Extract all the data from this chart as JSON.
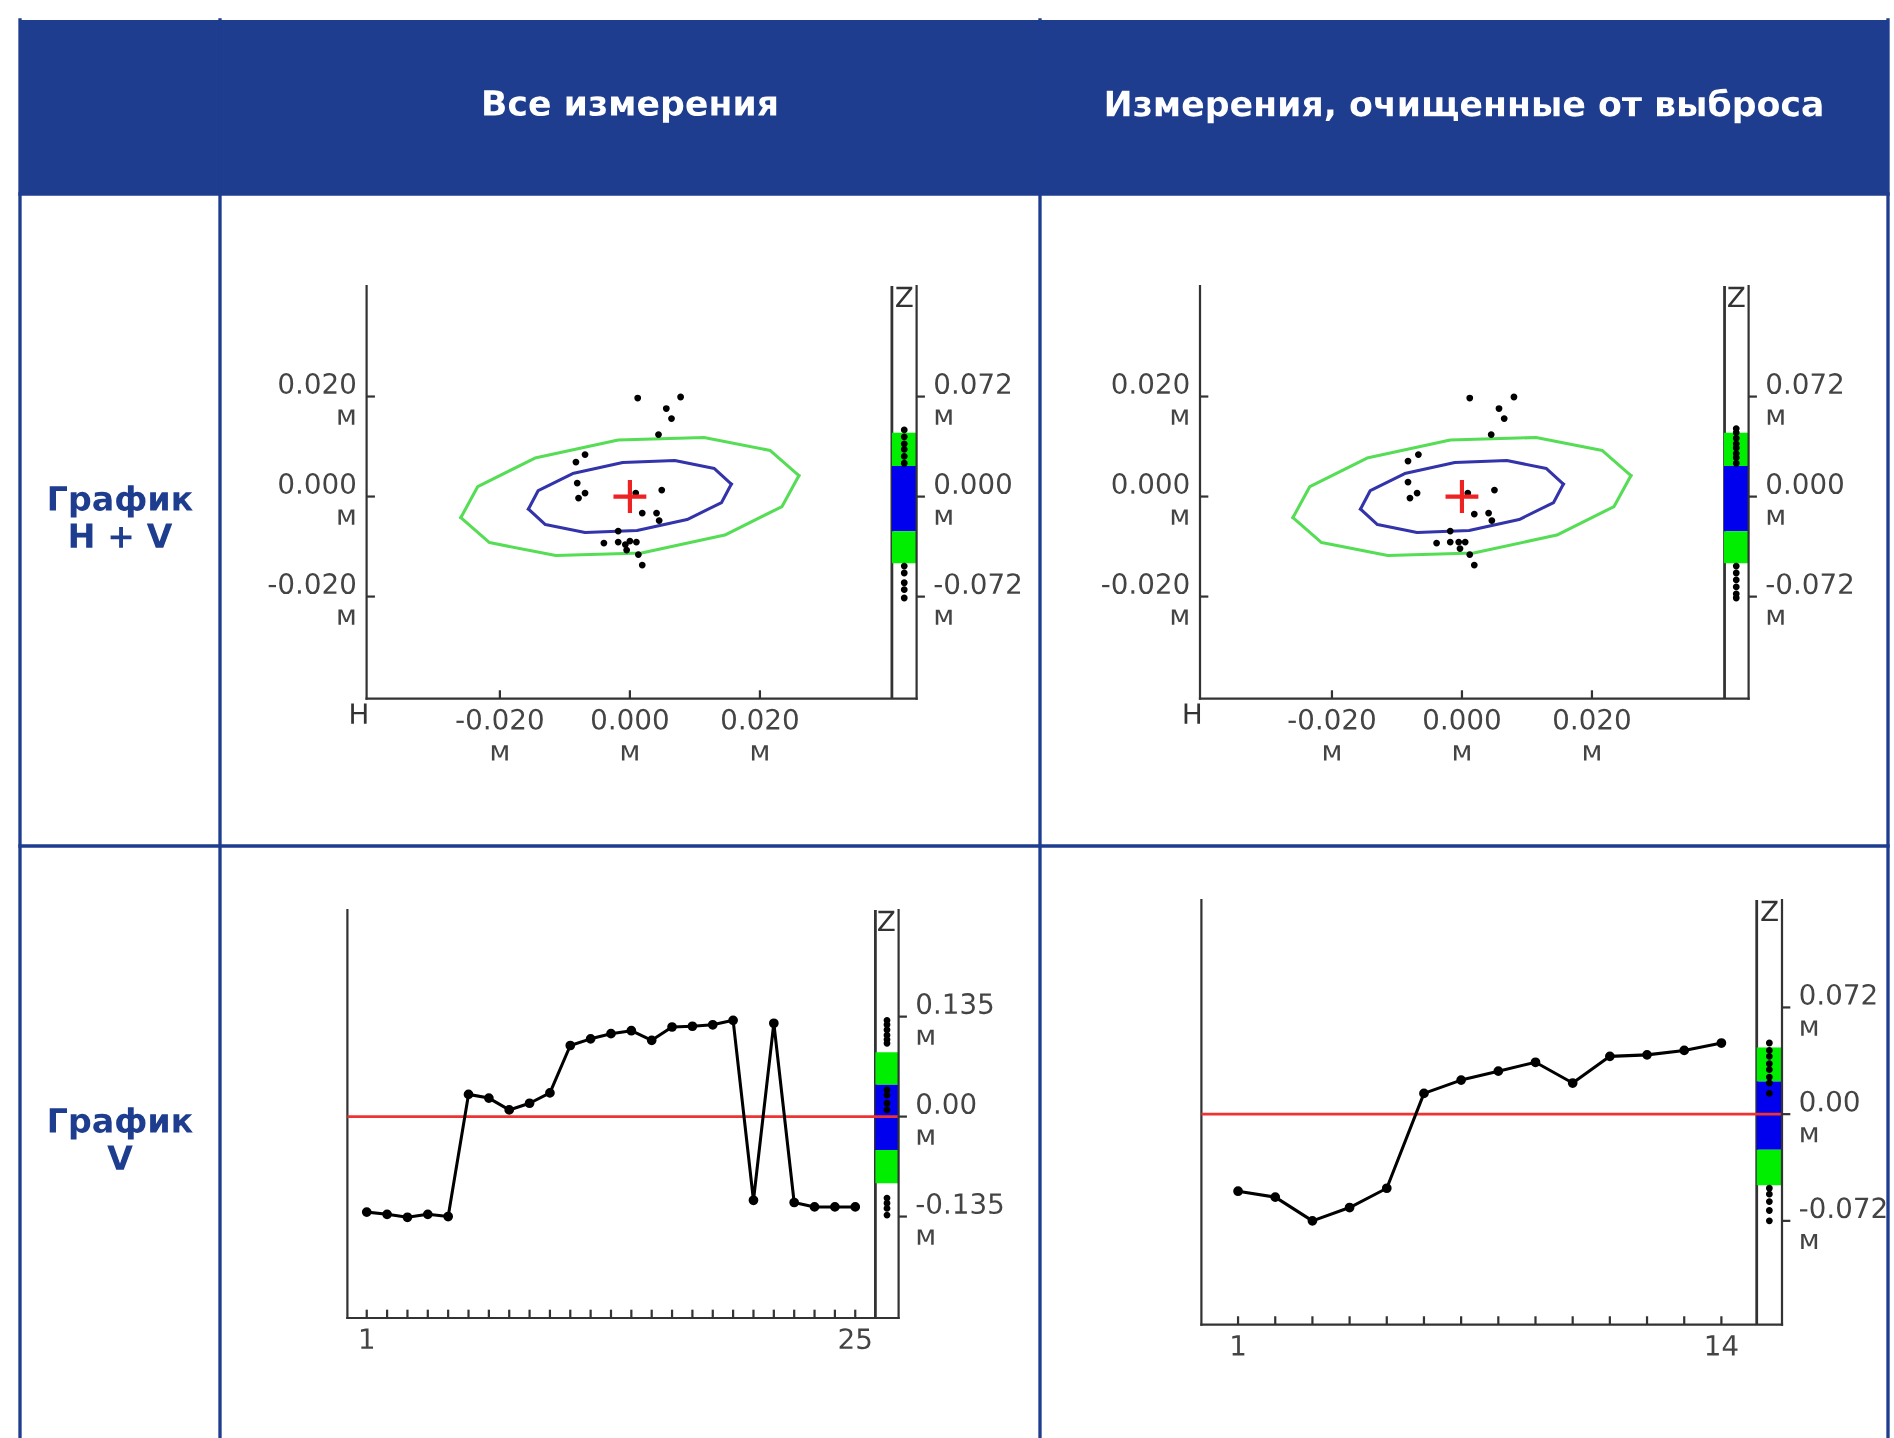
{
  "chart_data": [
    {
      "type": "scatter",
      "title": "Все измерения",
      "xlabel": "H",
      "y2label": "Z",
      "annotations": [
        "График\nH + V"
      ],
      "xlim": [
        -0.0405,
        0.0441
      ],
      "ylim": [
        -0.0404,
        0.0421
      ],
      "y2lim": [
        -0.1454,
        0.1516
      ],
      "xticks": [
        {
          "value": -0.02,
          "label": "-0.020\nм"
        },
        {
          "value": 0,
          "label": "0.000\nм"
        },
        {
          "value": 0.02,
          "label": "0.020\nм"
        }
      ],
      "yticks": [
        {
          "value": -0.02,
          "label": "-0.020\nм"
        },
        {
          "value": 0,
          "label": "0.000\nм"
        },
        {
          "value": 0.02,
          "label": "0.020\nм"
        }
      ],
      "y2ticks": [
        {
          "value": -0.072,
          "label": "-0.072\nм"
        },
        {
          "value": 0,
          "label": "0.000\nм"
        },
        {
          "value": 0.072,
          "label": "0.072\nм"
        }
      ],
      "ref_lines": [
        {
          "axis": "x",
          "value": 0.0403,
          "color": "#333333"
        }
      ],
      "series": [
        {
          "type": "line",
          "color": "#55dd55",
          "marker": "none",
          "x": [
            -0.026,
            -0.0234,
            -0.0146,
            -0.0018,
            0.0114,
            0.0216,
            0.026
          ],
          "values": [
            -0.0042,
            0.002,
            0.0077,
            0.0113,
            0.0118,
            0.0092,
            0.0042
          ]
        },
        {
          "type": "line",
          "color": "#55dd55",
          "marker": "none",
          "x": [
            -0.026,
            -0.0216,
            -0.0114,
            0.0018,
            0.0146,
            0.0234,
            0.026
          ],
          "values": [
            -0.0042,
            -0.0092,
            -0.0118,
            -0.0113,
            -0.0077,
            -0.002,
            0.0042
          ]
        },
        {
          "type": "line",
          "color": "#3333aa",
          "marker": "none",
          "x": [
            -0.0156,
            -0.0141,
            -0.0088,
            -0.0011,
            0.0069,
            0.013,
            0.0156
          ],
          "values": [
            -0.0025,
            0.0012,
            0.0046,
            0.0068,
            0.0072,
            0.0056,
            0.0025
          ]
        },
        {
          "type": "line",
          "color": "#3333aa",
          "marker": "none",
          "x": [
            -0.0156,
            -0.013,
            -0.0069,
            0.0011,
            0.0088,
            0.0141,
            0.0156
          ],
          "values": [
            -0.0025,
            -0.0056,
            -0.0072,
            -0.0068,
            -0.0046,
            -0.0012,
            0.0025
          ]
        },
        {
          "color": "#000000",
          "marker": "circle",
          "x": [
            0.0012,
            0.0078,
            0.0056,
            0.0064,
            0.0044,
            -0.0069,
            -0.0083,
            -0.0081,
            -0.0069,
            -0.0079,
            0.0009,
            0.0049,
            0.0019,
            0.0041,
            0.0045,
            -0.0018,
            -0.004,
            -0.0018,
            -0.0007,
            0.0,
            0.001,
            -0.0005,
            0.0013,
            0.0019
          ],
          "values": [
            0.0197,
            0.0199,
            0.0176,
            0.0156,
            0.0124,
            0.0084,
            0.0069,
            0.0027,
            0.0007,
            -0.0003,
            0.0007,
            0.0013,
            -0.0033,
            -0.0033,
            -0.0048,
            -0.0069,
            -0.0093,
            -0.0091,
            -0.0096,
            -0.0089,
            -0.0091,
            -0.0107,
            -0.0116,
            -0.0137
          ]
        },
        {
          "color": "#ee2222",
          "marker": "cross",
          "x": [
            0.0
          ],
          "values": [
            0.0
          ]
        },
        {
          "type": "bar",
          "axis": "y2",
          "color": "#00ee00",
          "x": [
            0.0422
          ],
          "base": [
            0.022
          ],
          "values": [
            0.024
          ]
        },
        {
          "type": "bar",
          "axis": "y2",
          "color": "#0000ee",
          "x": [
            0.0422
          ],
          "base": [
            -0.025
          ],
          "values": [
            0.047
          ]
        },
        {
          "type": "bar",
          "axis": "y2",
          "color": "#00ee00",
          "x": [
            0.0422
          ],
          "base": [
            -0.048
          ],
          "values": [
            0.023
          ]
        },
        {
          "axis": "y2",
          "color": "#000000",
          "marker": "circle",
          "x": [
            0.0422,
            0.0422,
            0.0422,
            0.0422,
            0.0422,
            0.0422,
            0.0422,
            0.0422,
            0.0422,
            0.0422,
            0.0422
          ],
          "values": [
            0.048,
            0.043,
            0.038,
            0.034,
            0.029,
            0.024,
            -0.05,
            -0.055,
            -0.062,
            -0.067,
            -0.073
          ]
        }
      ]
    },
    {
      "type": "scatter",
      "title": "Измерения, очищенные от выброса",
      "xlabel": "H",
      "y2label": "Z",
      "xlim": [
        -0.0403,
        0.0441
      ],
      "ylim": [
        -0.0404,
        0.0421
      ],
      "y2lim": [
        -0.1454,
        0.1516
      ],
      "xticks": [
        {
          "value": -0.02,
          "label": "-0.020\nм"
        },
        {
          "value": 0,
          "label": "0.000\nм"
        },
        {
          "value": 0.02,
          "label": "0.020\nм"
        }
      ],
      "yticks": [
        {
          "value": -0.02,
          "label": "-0.020\nм"
        },
        {
          "value": 0,
          "label": "0.000\nм"
        },
        {
          "value": 0.02,
          "label": "0.020\nм"
        }
      ],
      "y2ticks": [
        {
          "value": -0.072,
          "label": "-0.072\nм"
        },
        {
          "value": 0,
          "label": "0.000\nм"
        },
        {
          "value": 0.072,
          "label": "0.072\nм"
        }
      ],
      "ref_lines": [
        {
          "axis": "x",
          "value": 0.0404,
          "color": "#333333"
        }
      ],
      "series": [
        {
          "type": "line",
          "color": "#55dd55",
          "marker": "none",
          "x": [
            -0.026,
            -0.0234,
            -0.0146,
            -0.0018,
            0.0114,
            0.0216,
            0.026
          ],
          "values": [
            -0.0042,
            0.002,
            0.0077,
            0.0113,
            0.0118,
            0.0092,
            0.0042
          ]
        },
        {
          "type": "line",
          "color": "#55dd55",
          "marker": "none",
          "x": [
            -0.026,
            -0.0216,
            -0.0114,
            0.0018,
            0.0146,
            0.0234,
            0.026
          ],
          "values": [
            -0.0042,
            -0.0092,
            -0.0118,
            -0.0113,
            -0.0077,
            -0.002,
            0.0042
          ]
        },
        {
          "type": "line",
          "color": "#3333aa",
          "marker": "none",
          "x": [
            -0.0156,
            -0.0141,
            -0.0088,
            -0.0011,
            0.0069,
            0.013,
            0.0156
          ],
          "values": [
            -0.0025,
            0.0012,
            0.0046,
            0.0068,
            0.0072,
            0.0056,
            0.0025
          ]
        },
        {
          "type": "line",
          "color": "#3333aa",
          "marker": "none",
          "x": [
            -0.0156,
            -0.013,
            -0.0069,
            0.0011,
            0.0088,
            0.0141,
            0.0156
          ],
          "values": [
            -0.0025,
            -0.0056,
            -0.0072,
            -0.0068,
            -0.0046,
            -0.0012,
            0.0025
          ]
        },
        {
          "color": "#000000",
          "marker": "circle",
          "x": [
            0.0012,
            0.008,
            0.0057,
            0.0065,
            0.0045,
            -0.0067,
            -0.0083,
            -0.0083,
            -0.0069,
            -0.008,
            0.0009,
            0.005,
            0.0019,
            0.0041,
            0.0046,
            -0.0018,
            -0.0039,
            -0.0018,
            -0.0005,
            0.0005,
            -0.0003,
            0.0012,
            0.0019
          ],
          "values": [
            0.0197,
            0.0199,
            0.0176,
            0.0156,
            0.0124,
            0.0084,
            0.0071,
            0.0029,
            0.0007,
            -0.0003,
            0.0007,
            0.0013,
            -0.0035,
            -0.0033,
            -0.0048,
            -0.0069,
            -0.0093,
            -0.0091,
            -0.0091,
            -0.0091,
            -0.0104,
            -0.0116,
            -0.0137
          ]
        },
        {
          "color": "#ee2222",
          "marker": "cross",
          "x": [
            0.0
          ],
          "values": [
            0.0
          ]
        },
        {
          "type": "bar",
          "axis": "y2",
          "color": "#00ee00",
          "x": [
            0.0422
          ],
          "base": [
            0.022
          ],
          "values": [
            0.024
          ]
        },
        {
          "type": "bar",
          "axis": "y2",
          "color": "#0000ee",
          "x": [
            0.0422
          ],
          "base": [
            -0.025
          ],
          "values": [
            0.047
          ]
        },
        {
          "type": "bar",
          "axis": "y2",
          "color": "#00ee00",
          "x": [
            0.0422
          ],
          "base": [
            -0.048
          ],
          "values": [
            0.023
          ]
        },
        {
          "axis": "y2",
          "color": "#000000",
          "marker": "circle",
          "x": [
            0.0422,
            0.0422,
            0.0422,
            0.0422,
            0.0422,
            0.0422,
            0.0422,
            0.0422,
            0.0422,
            0.0422,
            0.0422,
            0.0422,
            0.0422,
            0.0422
          ],
          "values": [
            0.049,
            0.046,
            0.042,
            0.038,
            0.035,
            0.031,
            0.028,
            0.024,
            -0.05,
            -0.055,
            -0.06,
            -0.065,
            -0.07,
            -0.073
          ]
        }
      ]
    },
    {
      "type": "line",
      "annotations": [
        "График\nV"
      ],
      "y2label": "Z",
      "marker": "circle",
      "xlim": [
        0.05,
        27.13
      ],
      "y2lim": [
        -0.272,
        0.279
      ],
      "xticks": [
        {
          "value": 1,
          "label": "1"
        },
        {
          "value": 2,
          "label": null
        },
        {
          "value": 3,
          "label": null
        },
        {
          "value": 4,
          "label": null
        },
        {
          "value": 5,
          "label": null
        },
        {
          "value": 6,
          "label": null
        },
        {
          "value": 7,
          "label": null
        },
        {
          "value": 8,
          "label": null
        },
        {
          "value": 9,
          "label": null
        },
        {
          "value": 10,
          "label": null
        },
        {
          "value": 11,
          "label": null
        },
        {
          "value": 12,
          "label": null
        },
        {
          "value": 13,
          "label": null
        },
        {
          "value": 14,
          "label": null
        },
        {
          "value": 15,
          "label": null
        },
        {
          "value": 16,
          "label": null
        },
        {
          "value": 17,
          "label": null
        },
        {
          "value": 18,
          "label": null
        },
        {
          "value": 19,
          "label": null
        },
        {
          "value": 20,
          "label": null
        },
        {
          "value": 21,
          "label": null
        },
        {
          "value": 22,
          "label": null
        },
        {
          "value": 23,
          "label": null
        },
        {
          "value": 24,
          "label": null
        },
        {
          "value": 25,
          "label": "25"
        }
      ],
      "y2ticks": [
        {
          "value": -0.135,
          "label": "-0.135\nм"
        },
        {
          "value": 0,
          "label": "0.00\nм"
        },
        {
          "value": 0.135,
          "label": "0.135\nм"
        }
      ],
      "ref_lines": [
        {
          "axis": "y2",
          "value": 0,
          "color": "#ee3333"
        },
        {
          "axis": "x",
          "value": 25.99,
          "color": "#333333"
        }
      ],
      "series": [
        {
          "axis": "y2",
          "color": "#000000",
          "x": [
            1,
            2,
            3,
            4,
            5,
            6,
            7,
            8,
            9,
            10,
            11,
            12,
            13,
            14,
            15,
            16,
            17,
            18,
            19,
            20,
            21,
            22,
            23,
            24,
            25
          ],
          "values": [
            -0.129,
            -0.132,
            -0.136,
            -0.132,
            -0.135,
            0.03,
            0.025,
            0.009,
            0.018,
            0.032,
            0.096,
            0.105,
            0.112,
            0.116,
            0.103,
            0.121,
            0.122,
            0.124,
            0.13,
            -0.113,
            0.126,
            -0.116,
            -0.122,
            -0.122,
            -0.122
          ]
        },
        {
          "type": "bar",
          "axis": "y2",
          "color": "#00ee00",
          "x": [
            26.56
          ],
          "base": [
            0.043
          ],
          "values": [
            0.044
          ]
        },
        {
          "type": "bar",
          "axis": "y2",
          "color": "#0000ee",
          "x": [
            26.56
          ],
          "base": [
            -0.045
          ],
          "values": [
            0.088
          ]
        },
        {
          "type": "bar",
          "axis": "y2",
          "color": "#00ee00",
          "x": [
            26.56
          ],
          "base": [
            -0.09
          ],
          "values": [
            0.045
          ]
        },
        {
          "type": "scatter",
          "axis": "y2",
          "color": "#000000",
          "marker": "circle",
          "x": [
            26.56,
            26.56,
            26.56,
            26.56,
            26.56,
            26.56,
            26.56,
            26.56,
            26.56,
            26.56,
            26.56,
            26.56,
            26.56,
            26.56
          ],
          "values": [
            0.13,
            0.124,
            0.117,
            0.11,
            0.104,
            0.099,
            0.036,
            0.029,
            0.018,
            0.009,
            -0.11,
            -0.117,
            -0.124,
            -0.133
          ]
        }
      ]
    },
    {
      "type": "line",
      "y2label": "Z",
      "marker": "circle",
      "xlim": [
        0.014,
        15.63
      ],
      "y2lim": [
        -0.142,
        0.1445
      ],
      "xticks": [
        {
          "value": 1,
          "label": "1"
        },
        {
          "value": 2,
          "label": null
        },
        {
          "value": 3,
          "label": null
        },
        {
          "value": 4,
          "label": null
        },
        {
          "value": 5,
          "label": null
        },
        {
          "value": 6,
          "label": null
        },
        {
          "value": 7,
          "label": null
        },
        {
          "value": 8,
          "label": null
        },
        {
          "value": 9,
          "label": null
        },
        {
          "value": 10,
          "label": null
        },
        {
          "value": 11,
          "label": null
        },
        {
          "value": 12,
          "label": null
        },
        {
          "value": 13,
          "label": null
        },
        {
          "value": 14,
          "label": "14"
        }
      ],
      "y2ticks": [
        {
          "value": -0.072,
          "label": "-0.072\nм"
        },
        {
          "value": 0,
          "label": "0.00\nм"
        },
        {
          "value": 0.072,
          "label": "0.072\nм"
        }
      ],
      "ref_lines": [
        {
          "axis": "y2",
          "value": 0,
          "color": "#ee3333"
        },
        {
          "axis": "x",
          "value": 14.95,
          "color": "#333333"
        }
      ],
      "series": [
        {
          "axis": "y2",
          "color": "#000000",
          "x": [
            1,
            2,
            3,
            4,
            5,
            6,
            7,
            8,
            9,
            10,
            11,
            12,
            13,
            14
          ],
          "values": [
            -0.052,
            -0.056,
            -0.072,
            -0.063,
            -0.05,
            0.014,
            0.023,
            0.029,
            0.035,
            0.021,
            0.039,
            0.04,
            0.043,
            0.048
          ]
        },
        {
          "type": "bar",
          "axis": "y2",
          "color": "#00ee00",
          "x": [
            15.29
          ],
          "base": [
            0.022
          ],
          "values": [
            0.023
          ]
        },
        {
          "type": "bar",
          "axis": "y2",
          "color": "#0000ee",
          "x": [
            15.29
          ],
          "base": [
            -0.024
          ],
          "values": [
            0.046
          ]
        },
        {
          "type": "bar",
          "axis": "y2",
          "color": "#00ee00",
          "x": [
            15.29
          ],
          "base": [
            -0.048
          ],
          "values": [
            0.024
          ]
        },
        {
          "type": "scatter",
          "axis": "y2",
          "color": "#000000",
          "marker": "circle",
          "x": [
            15.29,
            15.29,
            15.29,
            15.29,
            15.29,
            15.29,
            15.29,
            15.29,
            15.29,
            15.29,
            15.29,
            15.29,
            15.29
          ],
          "values": [
            0.048,
            0.043,
            0.039,
            0.034,
            0.03,
            0.025,
            0.021,
            0.014,
            -0.05,
            -0.054,
            -0.059,
            -0.065,
            -0.072
          ]
        }
      ]
    }
  ]
}
